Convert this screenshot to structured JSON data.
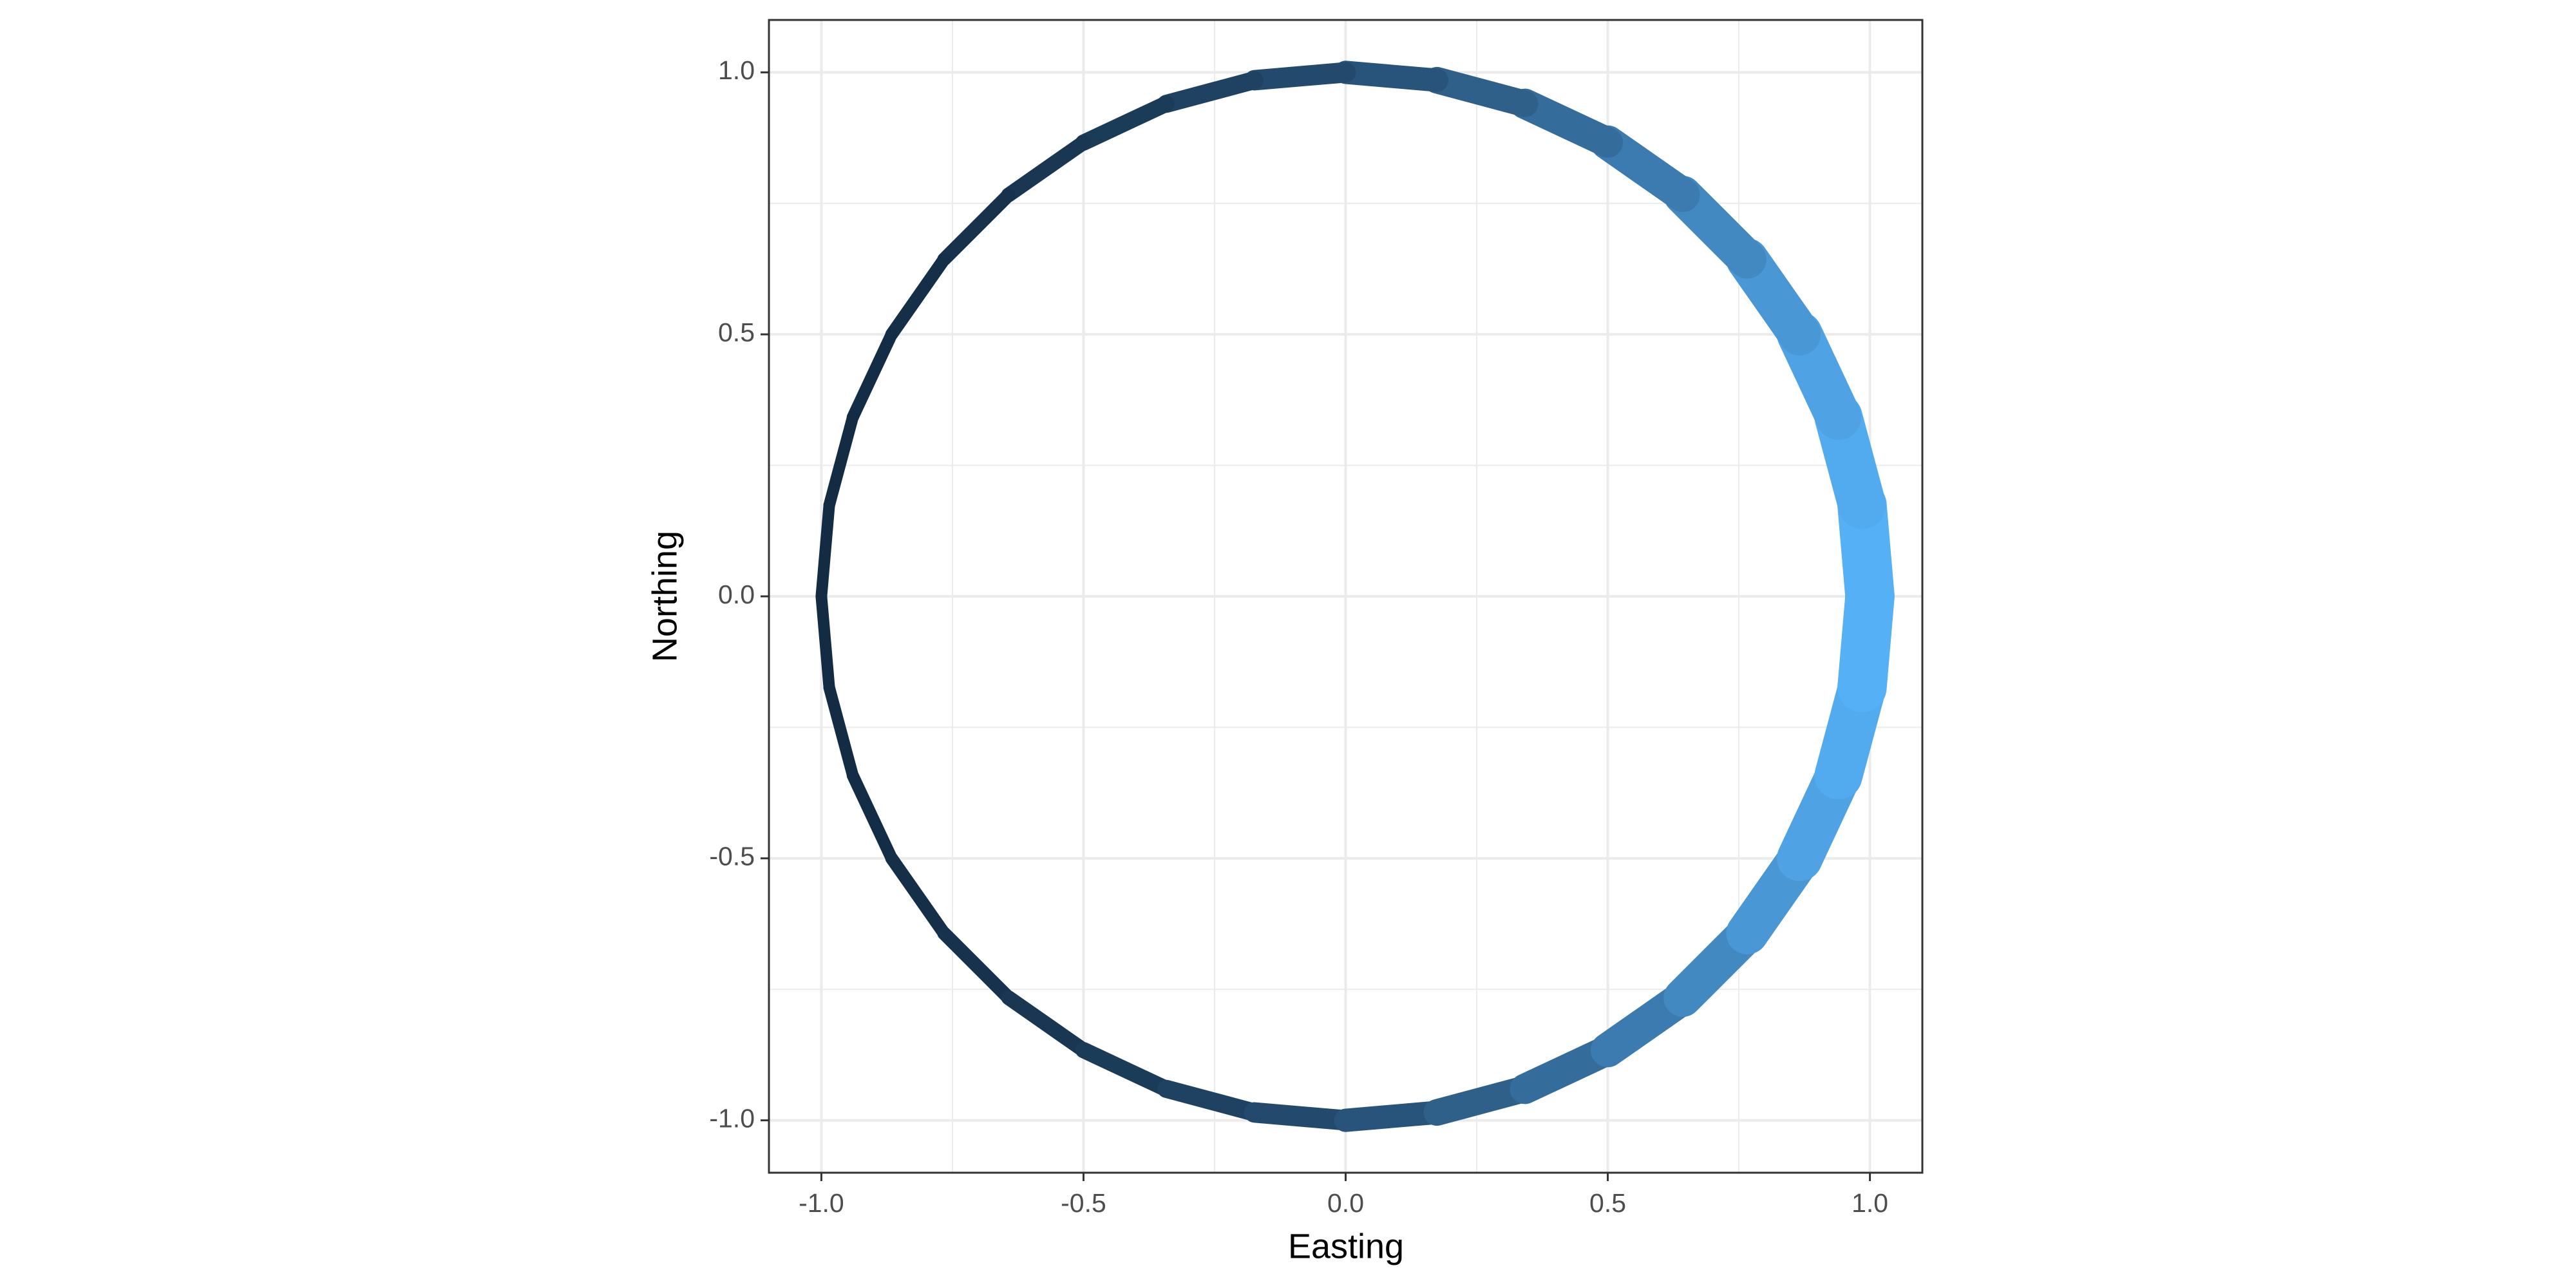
{
  "chart_data": {
    "type": "path",
    "x_label": "Easting",
    "y_label": "Northing",
    "xlim": [
      -1.1,
      1.1
    ],
    "ylim": [
      -1.1,
      1.1
    ],
    "xticks": [
      {
        "value": -1,
        "label": "-1.0"
      },
      -0.5,
      {
        "value": 0,
        "label": "0.0"
      },
      0.5,
      {
        "value": 1,
        "label": "1.0"
      }
    ],
    "yticks": [
      {
        "value": -1,
        "label": "-1.0"
      },
      -0.5,
      {
        "value": 0,
        "label": "0.0"
      },
      0.5,
      {
        "value": 1,
        "label": "1.0"
      }
    ],
    "minor_breaks": [
      -0.75,
      -0.25,
      0.25,
      0.75
    ],
    "grid": true,
    "color_low": "#132b43",
    "color_high": "#56b1f7",
    "series": [
      {
        "x": [
          1,
          0.985,
          0.94,
          0.866,
          0.766,
          0.643,
          0.5,
          0.342,
          0.174,
          0,
          -0.174,
          -0.342,
          -0.5,
          -0.643,
          -0.766,
          -0.866,
          -0.94,
          -0.985,
          -1,
          -0.985,
          -0.94,
          -0.866,
          -0.766,
          -0.643,
          -0.5,
          -0.342,
          -0.174,
          0,
          0.174,
          0.342,
          0.5,
          0.643,
          0.766,
          0.866,
          0.94,
          0.985,
          1
        ],
        "y": [
          0,
          0.174,
          0.342,
          0.5,
          0.643,
          0.766,
          0.866,
          0.94,
          0.985,
          1,
          0.985,
          0.94,
          0.866,
          0.766,
          0.643,
          0.5,
          0.342,
          0.174,
          0,
          -0.174,
          -0.342,
          -0.5,
          -0.643,
          -0.766,
          -0.866,
          -0.94,
          -0.985,
          -1,
          -0.985,
          -0.94,
          -0.866,
          -0.766,
          -0.643,
          -0.5,
          -0.342,
          -0.174,
          0
        ],
        "size": [
          2.72,
          2.68,
          2.56,
          2.38,
          2.15,
          1.9,
          1.65,
          1.41,
          1.19,
          1,
          0.84,
          0.71,
          0.61,
          0.53,
          0.46,
          0.42,
          0.39,
          0.37,
          0.37,
          0.37,
          0.39,
          0.42,
          0.46,
          0.53,
          0.61,
          0.71,
          0.84,
          1,
          1.19,
          1.41,
          1.65,
          1.9,
          2.15,
          2.38,
          2.56,
          2.68,
          2.72
        ]
      }
    ]
  }
}
